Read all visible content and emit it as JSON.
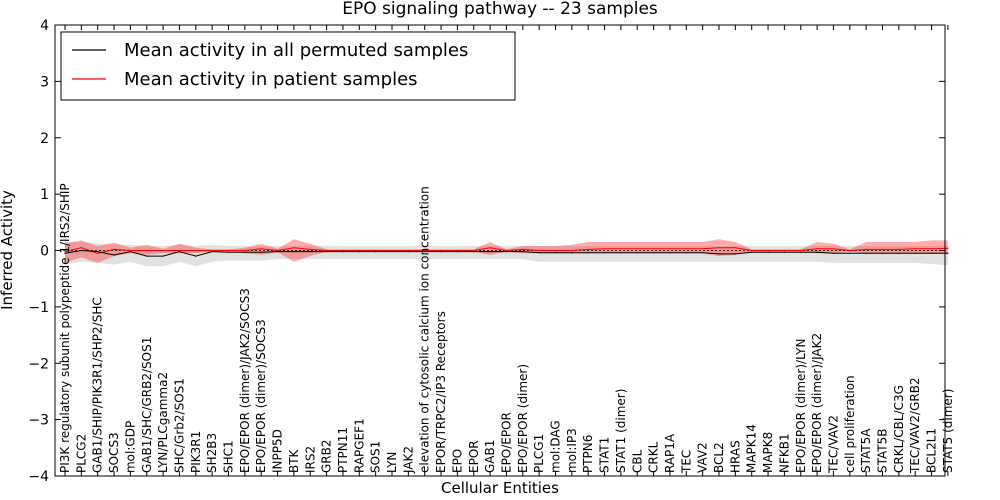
{
  "chart_data": {
    "type": "line",
    "title": "EPO signaling pathway -- 23 samples",
    "xlabel": "Cellular Entities",
    "ylabel": "Inferred Activity",
    "ylim": [
      -4,
      4
    ],
    "yticks": [
      "4",
      "3",
      "2",
      "1",
      "0",
      "−1",
      "−2",
      "−3",
      "−4"
    ],
    "ytick_values": [
      4,
      3,
      2,
      1,
      0,
      -1,
      -2,
      -3,
      -4
    ],
    "legend": {
      "location": "top-left",
      "entries": [
        {
          "label": "Mean activity in all permuted samples",
          "color": "#000000"
        },
        {
          "label": "Mean activity in patient samples",
          "color": "#ff0000"
        }
      ]
    },
    "categories": [
      "PI3K regulatory subunit polypeptide 1/IRS2/SHIP",
      "PLCG2",
      "GAB1/SHIP/PIK3R1/SHP2/SHC",
      "SOCS3",
      "mol:GDP",
      "GAB1/SHC/GRB2/SOS1",
      "LYN/PLCgamma2",
      "SHC/Grb2/SOS1",
      "PIK3R1",
      "SH2B3",
      "SHC1",
      "EPO/EPOR (dimer)/JAK2/SOCS3",
      "EPO/EPOR (dimer)/SOCS3",
      "INPP5D",
      "BTK",
      "IRS2",
      "GRB2",
      "PTPN11",
      "RAPGEF1",
      "SOS1",
      "LYN",
      "JAK2",
      "elevation of cytosolic calcium ion concentration",
      "EPOR/TRPC2/IP3 Receptors",
      "EPO",
      "EPOR",
      "GAB1",
      "EPO/EPOR",
      "EPO/EPOR (dimer)",
      "PLCG1",
      "mol:DAG",
      "mol:IP3",
      "PTPN6",
      "STAT1",
      "STAT1 (dimer)",
      "CBL",
      "CRKL",
      "RAP1A",
      "TEC",
      "VAV2",
      "BCL2",
      "HRAS",
      "MAPK14",
      "MAPK8",
      "NFKB1",
      "EPO/EPOR (dimer)/LYN",
      "EPO/EPOR (dimer)/JAK2",
      "TEC/VAV2",
      "cell proliferation",
      "STAT5A",
      "STAT5B",
      "CRKL/CBL/C3G",
      "TEC/VAV2/GRB2",
      "BCL2L1",
      "STAT5 (dimer)"
    ],
    "series": [
      {
        "name": "Mean activity in all permuted samples",
        "color": "#000000",
        "values": [
          -0.05,
          0.0,
          -0.02,
          -0.08,
          -0.02,
          -0.1,
          -0.1,
          -0.02,
          -0.1,
          -0.02,
          -0.03,
          -0.03,
          -0.03,
          -0.02,
          -0.02,
          -0.02,
          -0.02,
          -0.02,
          -0.02,
          -0.02,
          -0.02,
          -0.02,
          -0.02,
          -0.02,
          -0.02,
          -0.02,
          -0.02,
          -0.02,
          -0.02,
          -0.04,
          -0.04,
          -0.04,
          -0.04,
          -0.04,
          -0.04,
          -0.04,
          -0.04,
          -0.04,
          -0.04,
          -0.04,
          -0.06,
          -0.06,
          -0.03,
          -0.03,
          -0.03,
          -0.03,
          -0.03,
          -0.05,
          -0.05,
          -0.05,
          -0.05,
          -0.05,
          -0.05,
          -0.05,
          -0.05
        ],
        "lower": [
          -0.25,
          -0.2,
          -0.22,
          -0.25,
          -0.2,
          -0.28,
          -0.28,
          -0.2,
          -0.28,
          -0.2,
          -0.18,
          -0.18,
          -0.18,
          -0.15,
          -0.15,
          -0.15,
          -0.15,
          -0.15,
          -0.15,
          -0.15,
          -0.15,
          -0.15,
          -0.15,
          -0.15,
          -0.15,
          -0.15,
          -0.15,
          -0.15,
          -0.15,
          -0.2,
          -0.2,
          -0.2,
          -0.2,
          -0.2,
          -0.2,
          -0.2,
          -0.2,
          -0.2,
          -0.2,
          -0.2,
          -0.2,
          -0.2,
          -0.2,
          -0.2,
          -0.2,
          -0.2,
          -0.2,
          -0.22,
          -0.22,
          -0.22,
          -0.22,
          -0.22,
          -0.22,
          -0.24,
          -0.26
        ],
        "upper": [
          0.15,
          0.15,
          0.12,
          0.1,
          0.1,
          0.08,
          0.08,
          0.1,
          0.08,
          0.1,
          0.08,
          0.08,
          0.08,
          0.08,
          0.08,
          0.08,
          0.08,
          0.08,
          0.08,
          0.08,
          0.08,
          0.08,
          0.08,
          0.08,
          0.08,
          0.08,
          0.08,
          0.08,
          0.08,
          0.08,
          0.08,
          0.08,
          0.08,
          0.08,
          0.08,
          0.08,
          0.08,
          0.08,
          0.08,
          0.08,
          0.08,
          0.08,
          0.08,
          0.08,
          0.08,
          0.08,
          0.08,
          0.08,
          0.08,
          0.08,
          0.08,
          0.08,
          0.08,
          0.08,
          0.08
        ]
      },
      {
        "name": "Mean activity in patient samples",
        "color": "#ff0000",
        "values": [
          -0.02,
          0.05,
          -0.05,
          0.02,
          0.0,
          0.0,
          0.0,
          0.0,
          0.0,
          0.0,
          0.0,
          0.0,
          0.03,
          0.0,
          0.05,
          0.02,
          0.0,
          0.0,
          0.0,
          0.0,
          0.0,
          0.0,
          0.0,
          0.0,
          0.0,
          0.0,
          0.05,
          0.0,
          0.02,
          0.0,
          0.0,
          0.0,
          0.02,
          0.03,
          0.03,
          0.03,
          0.03,
          0.03,
          0.03,
          0.03,
          0.05,
          0.05,
          0.0,
          0.0,
          0.0,
          0.0,
          0.03,
          0.03,
          0.0,
          0.02,
          0.02,
          0.02,
          0.03,
          0.03,
          0.04
        ],
        "lower": [
          -0.22,
          -0.12,
          -0.22,
          -0.1,
          -0.05,
          -0.08,
          -0.05,
          -0.05,
          -0.05,
          -0.02,
          -0.02,
          -0.05,
          -0.08,
          -0.03,
          -0.2,
          -0.1,
          -0.02,
          -0.02,
          -0.02,
          -0.02,
          -0.02,
          -0.02,
          -0.02,
          -0.02,
          -0.02,
          -0.02,
          -0.08,
          -0.02,
          -0.05,
          -0.05,
          -0.05,
          -0.05,
          -0.05,
          -0.05,
          -0.05,
          -0.05,
          -0.05,
          -0.05,
          -0.05,
          -0.05,
          -0.1,
          -0.08,
          -0.02,
          -0.02,
          -0.02,
          -0.02,
          -0.05,
          -0.05,
          -0.02,
          -0.05,
          -0.05,
          -0.05,
          -0.05,
          -0.05,
          -0.05
        ],
        "upper": [
          0.12,
          0.18,
          0.08,
          0.14,
          0.05,
          0.1,
          0.03,
          0.12,
          0.05,
          0.02,
          0.02,
          0.05,
          0.12,
          0.03,
          0.2,
          0.12,
          0.02,
          0.02,
          0.02,
          0.02,
          0.02,
          0.02,
          0.02,
          0.02,
          0.02,
          0.02,
          0.15,
          0.02,
          0.08,
          0.08,
          0.08,
          0.1,
          0.15,
          0.15,
          0.15,
          0.15,
          0.15,
          0.15,
          0.15,
          0.15,
          0.2,
          0.15,
          0.02,
          0.02,
          0.02,
          0.02,
          0.15,
          0.12,
          0.02,
          0.15,
          0.15,
          0.15,
          0.15,
          0.18,
          0.18
        ]
      }
    ]
  }
}
